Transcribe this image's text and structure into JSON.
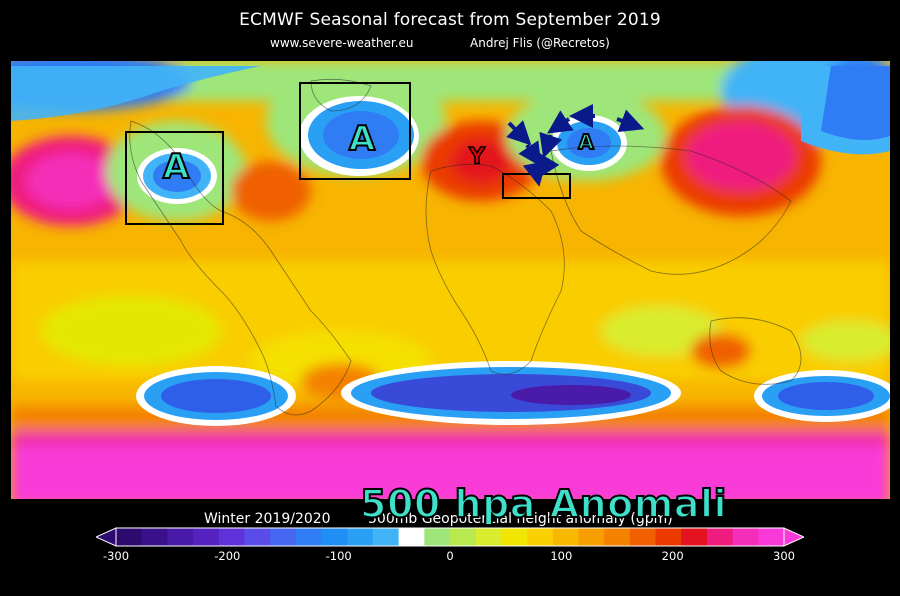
{
  "header": {
    "title": "ECMWF Seasonal forecast from September 2019",
    "site": "www.severe-weather.eu",
    "author": "Andrej Flis (@Recretos)"
  },
  "overlay_title": "500 hpa Anomali",
  "season_label": "Winter 2019/2020",
  "colorbar_label": "500mb Geopotential height anomaly (gpm)",
  "map_labels": {
    "trough_na": "A",
    "trough_atlantic": "A",
    "trough_russia": "A",
    "ridge_europe": "Y"
  },
  "colorbar": {
    "ticks": [
      "-300",
      "-200",
      "-100",
      "0",
      "100",
      "200",
      "300"
    ],
    "colors": [
      "#2c0a6e",
      "#3a118a",
      "#4a1aa8",
      "#5522c0",
      "#6030d8",
      "#5a4ce8",
      "#4466f0",
      "#2f7cf5",
      "#1f8ff5",
      "#2aa0f5",
      "#41b4f7",
      "#ffffff",
      "#9ee67a",
      "#b8ea50",
      "#d9ec2d",
      "#f2e600",
      "#fbd000",
      "#f9b800",
      "#f69e00",
      "#f48200",
      "#f06000",
      "#eb3a00",
      "#e3131f",
      "#ef1c7f",
      "#f52db8",
      "#f93ad8"
    ]
  }
}
